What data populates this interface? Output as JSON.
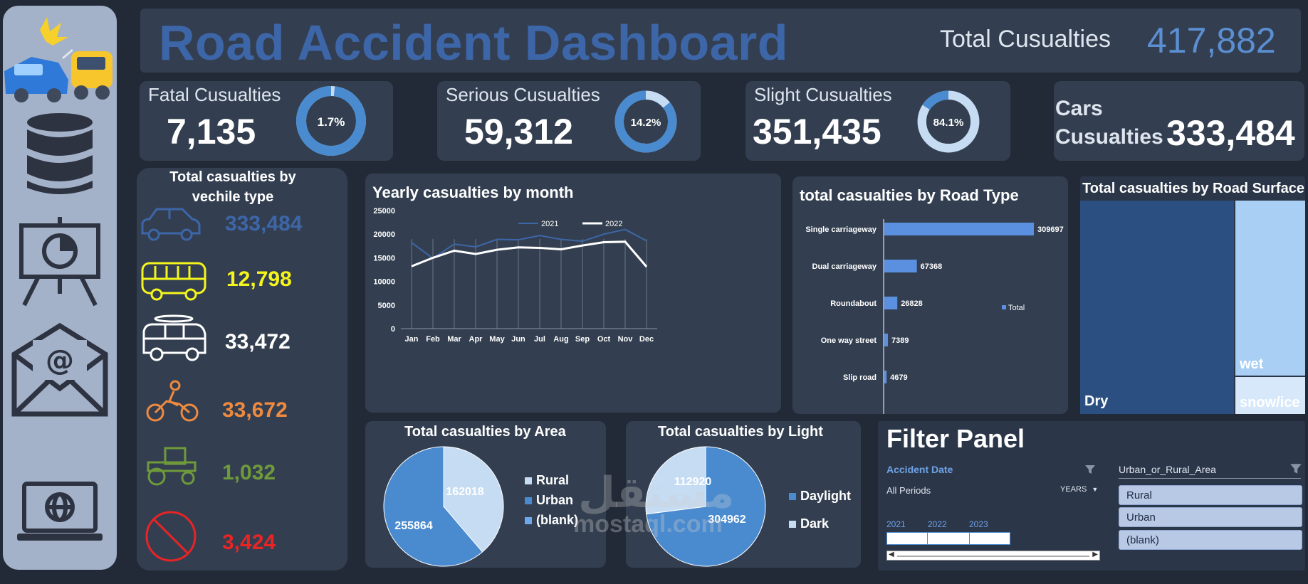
{
  "header": {
    "title": "Road Accident Dashboard",
    "total_label": "Total Cusualties",
    "total_value": "417,882"
  },
  "kpis": {
    "fatal": {
      "label": "Fatal Cusualties",
      "value": "7,135",
      "pct_label": "1.7%",
      "pct": 0.017
    },
    "serious": {
      "label": "Serious Cusualties",
      "value": "59,312",
      "pct_label": "14.2%",
      "pct": 0.142
    },
    "slight": {
      "label": "Slight Cusualties",
      "value": "351,435",
      "pct_label": "84.1%",
      "pct": 0.841
    },
    "cars": {
      "label_line1": "Cars",
      "label_line2": "Cusualties",
      "value": "333,484"
    }
  },
  "vehicle_panel": {
    "title_line1": "Total casualties by",
    "title_line2": "vechile type",
    "items": [
      {
        "icon": "car-icon",
        "value": "333,484",
        "color": "#3d66a8"
      },
      {
        "icon": "bus-icon",
        "value": "12,798",
        "color": "#f5f51e"
      },
      {
        "icon": "van-icon",
        "value": "33,472",
        "color": "#ffffff"
      },
      {
        "icon": "motorcycle-icon",
        "value": "33,672",
        "color": "#ef8a3f"
      },
      {
        "icon": "tractor-icon",
        "value": "1,032",
        "color": "#6f9a3a"
      },
      {
        "icon": "no-entry-icon",
        "value": "3,424",
        "color": "#e82424"
      }
    ]
  },
  "sidebar": {
    "icons": [
      "crash-icon",
      "database-icon",
      "presentation-icon",
      "email-icon",
      "laptop-globe-icon"
    ]
  },
  "chart_data": [
    {
      "type": "line",
      "title": "Yearly casualties by month",
      "x": [
        "Jan",
        "Feb",
        "Mar",
        "Apr",
        "May",
        "Jun",
        "Jul",
        "Aug",
        "Sep",
        "Oct",
        "Nov",
        "Dec"
      ],
      "series": [
        {
          "name": "2021",
          "values": [
            18200,
            14900,
            17900,
            17300,
            18900,
            18800,
            19700,
            18900,
            18500,
            20000,
            21000,
            18600
          ],
          "color": "#3d66a8"
        },
        {
          "name": "2022",
          "values": [
            13200,
            15000,
            16500,
            15800,
            16700,
            17200,
            17100,
            16800,
            17600,
            18300,
            18400,
            13100
          ],
          "color": "#ffffff"
        }
      ],
      "ylim": [
        0,
        25000
      ],
      "yticks": [
        "0",
        "5000",
        "10000",
        "15000",
        "20000",
        "25000"
      ],
      "grid": "vertical",
      "legend": "top"
    },
    {
      "type": "bar",
      "orientation": "horizontal",
      "title": "total casualties by Road Type",
      "categories": [
        "Single carriageway",
        "Dual carriageway",
        "Roundabout",
        "One way street",
        "Slip road"
      ],
      "values": [
        309697,
        67368,
        26828,
        7389,
        4679
      ],
      "value_labels": [
        "309697",
        "67368",
        "26828",
        "7389",
        "4679"
      ],
      "legend": "Total",
      "color": "#5b8fe0"
    },
    {
      "type": "treemap",
      "title": "Total casualties by Road Surface",
      "labels": [
        "Dry",
        "wet",
        "snow/ice"
      ],
      "colors": [
        "#2b4f80",
        "#a9cff5",
        "#d7e8fb"
      ]
    },
    {
      "type": "pie",
      "title": "Total casualties by Area",
      "labels": [
        "Rural",
        "Urban",
        "(blank)"
      ],
      "values": [
        162018,
        255864,
        0
      ],
      "value_labels": [
        "162018",
        "255864",
        ""
      ],
      "colors": [
        "#c6dcf3",
        "#4a8bd0",
        "#6ea8e8"
      ],
      "legend": "right"
    },
    {
      "type": "pie",
      "title": "Total casualties by Light",
      "labels": [
        "Daylight",
        "Dark"
      ],
      "values": [
        304962,
        112920
      ],
      "value_labels": [
        "304962",
        "112920"
      ],
      "colors": [
        "#4a8bd0",
        "#c6dcf3"
      ],
      "legend": "right"
    }
  ],
  "filter_panel": {
    "title": "Filter Panel",
    "date_label": "Accident Date",
    "all_periods": "All Periods",
    "years_dropdown": "YEARS",
    "timeline_years": [
      "2021",
      "2022",
      "2023"
    ],
    "area_label": "Urban_or_Rural_Area",
    "area_options": [
      "Rural",
      "Urban",
      "(blank)"
    ]
  },
  "watermark": {
    "latin": "mostaql.com",
    "arabic": "مستقل"
  }
}
